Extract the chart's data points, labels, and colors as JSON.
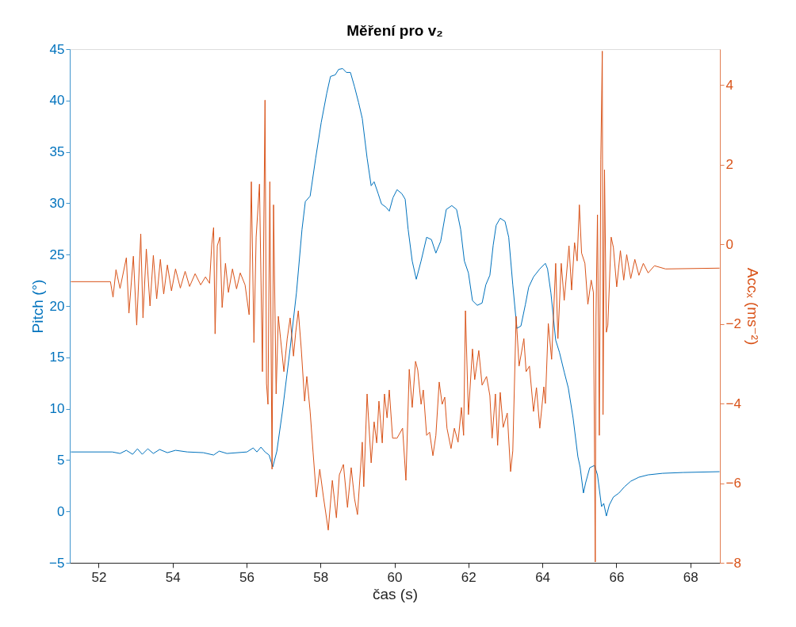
{
  "chart_data": {
    "type": "line",
    "title": "Měření pro v₂",
    "xlabel": "čas (s)",
    "ylabel": "Pitch (°)",
    "y2label": "Accₓ (ms⁻²)",
    "xlim": [
      51.22,
      68.8
    ],
    "xticks": [
      52,
      54,
      56,
      58,
      60,
      62,
      64,
      66,
      68
    ],
    "ylim": [
      -5,
      45
    ],
    "yticks": [
      -5,
      0,
      5,
      10,
      15,
      20,
      25,
      30,
      35,
      40,
      45
    ],
    "y2lim": [
      -8,
      4.9
    ],
    "y2ticks": [
      -8,
      -6,
      -4,
      -2,
      0,
      2,
      4
    ],
    "grid": false,
    "marker": "none",
    "line_style": "solid",
    "series": [
      {
        "color": "#0072bd",
        "x": [
          51.25,
          52.37,
          52.58,
          52.75,
          52.92,
          53.05,
          53.18,
          53.33,
          53.48,
          53.65,
          53.86,
          54.08,
          54.4,
          54.83,
          55.11,
          55.26,
          55.47,
          56.01,
          56.18,
          56.28,
          56.39,
          56.5,
          56.61,
          56.71,
          56.82,
          56.97,
          57.18,
          57.35,
          57.5,
          57.59,
          57.72,
          57.87,
          58.02,
          58.17,
          58.27,
          58.4,
          58.49,
          58.6,
          58.7,
          58.81,
          58.92,
          59.03,
          59.13,
          59.26,
          59.37,
          59.45,
          59.56,
          59.65,
          59.77,
          59.86,
          59.96,
          60.07,
          60.2,
          60.29,
          60.37,
          60.48,
          60.59,
          60.72,
          60.87,
          61.0,
          61.12,
          61.25,
          61.4,
          61.55,
          61.68,
          61.79,
          61.89,
          62.0,
          62.11,
          62.24,
          62.37,
          62.47,
          62.58,
          62.67,
          62.75,
          62.86,
          62.99,
          63.09,
          63.2,
          63.31,
          63.42,
          63.54,
          63.63,
          63.76,
          63.93,
          64.08,
          64.14,
          64.23,
          64.36,
          64.46,
          64.59,
          64.7,
          64.83,
          64.96,
          65.02,
          65.11,
          65.17,
          65.28,
          65.41,
          65.49,
          65.6,
          65.66,
          65.73,
          65.81,
          65.92,
          66.07,
          66.22,
          66.39,
          66.61,
          66.86,
          67.25,
          67.8,
          68.79
        ],
        "values": [
          5.79,
          5.79,
          5.64,
          5.95,
          5.56,
          6.1,
          5.56,
          6.1,
          5.64,
          6.03,
          5.72,
          5.95,
          5.79,
          5.72,
          5.49,
          5.87,
          5.64,
          5.79,
          6.18,
          5.79,
          6.26,
          5.79,
          5.49,
          4.33,
          5.87,
          9.73,
          15.9,
          21.29,
          27.46,
          30.16,
          30.7,
          34.4,
          37.87,
          40.72,
          42.34,
          42.5,
          43.03,
          43.11,
          42.73,
          42.73,
          41.34,
          39.8,
          38.25,
          34.4,
          31.7,
          32.09,
          30.93,
          29.93,
          29.62,
          29.23,
          30.54,
          31.32,
          30.93,
          30.39,
          27.46,
          24.38,
          22.6,
          24.38,
          26.69,
          26.46,
          25.15,
          26.3,
          29.39,
          29.77,
          29.39,
          27.46,
          24.38,
          23.22,
          20.52,
          20.06,
          20.29,
          22.06,
          22.99,
          25.92,
          27.85,
          28.54,
          28.23,
          26.69,
          22.06,
          17.82,
          18.05,
          20.13,
          21.83,
          22.83,
          23.61,
          24.15,
          23.61,
          21.29,
          16.67,
          15.51,
          13.58,
          12.04,
          9.11,
          5.33,
          4.33,
          1.79,
          2.79,
          4.25,
          4.48,
          3.56,
          0.47,
          0.78,
          -0.45,
          0.63,
          1.4,
          1.79,
          2.4,
          2.94,
          3.33,
          3.56,
          3.71,
          3.79,
          3.87
        ]
      },
      {
        "color": "#d95319",
        "axis": "y2",
        "x": [
          51.25,
          52.32,
          52.39,
          52.47,
          52.58,
          52.75,
          52.82,
          52.94,
          53.03,
          53.14,
          53.2,
          53.29,
          53.39,
          53.48,
          53.57,
          53.67,
          53.76,
          53.86,
          53.97,
          54.08,
          54.21,
          54.34,
          54.46,
          54.61,
          54.76,
          54.89,
          55.0,
          55.06,
          55.11,
          55.15,
          55.21,
          55.28,
          55.34,
          55.43,
          55.51,
          55.62,
          55.73,
          55.83,
          55.96,
          56.07,
          56.13,
          56.2,
          56.26,
          56.35,
          56.43,
          56.5,
          56.54,
          56.58,
          56.63,
          56.69,
          56.73,
          56.8,
          56.86,
          56.92,
          57.01,
          57.1,
          57.18,
          57.27,
          57.33,
          57.4,
          57.48,
          57.57,
          57.63,
          57.72,
          57.8,
          57.89,
          57.98,
          58.08,
          58.21,
          58.32,
          58.43,
          58.51,
          58.62,
          58.73,
          58.83,
          58.92,
          59.0,
          59.13,
          59.17,
          59.26,
          59.37,
          59.45,
          59.52,
          59.58,
          59.67,
          59.73,
          59.8,
          59.86,
          59.95,
          60.07,
          60.22,
          60.31,
          60.4,
          60.48,
          60.57,
          60.63,
          60.72,
          60.78,
          60.87,
          60.95,
          61.04,
          61.12,
          61.21,
          61.29,
          61.36,
          61.42,
          61.53,
          61.62,
          61.72,
          61.81,
          61.87,
          61.92,
          62.0,
          62.11,
          62.17,
          62.28,
          62.37,
          62.49,
          62.58,
          62.64,
          62.73,
          62.79,
          62.86,
          62.94,
          63.05,
          63.14,
          63.2,
          63.29,
          63.37,
          63.5,
          63.56,
          63.65,
          63.76,
          63.84,
          63.93,
          64.04,
          64.08,
          64.16,
          64.25,
          64.36,
          64.42,
          64.51,
          64.59,
          64.72,
          64.79,
          64.87,
          64.94,
          65.0,
          65.06,
          65.15,
          65.23,
          65.32,
          65.38,
          65.43,
          65.45,
          65.49,
          65.54,
          65.58,
          65.62,
          65.64,
          65.68,
          65.73,
          65.77,
          65.86,
          65.92,
          66.01,
          66.11,
          66.2,
          66.28,
          66.39,
          66.5,
          66.61,
          66.73,
          66.86,
          67.03,
          67.33,
          68.79
        ],
        "values": [
          -0.94,
          -0.94,
          -1.33,
          -0.64,
          -1.11,
          -0.34,
          -1.73,
          -0.3,
          -2.03,
          0.26,
          -1.85,
          -0.12,
          -1.55,
          -0.28,
          -1.37,
          -0.38,
          -1.25,
          -0.52,
          -1.17,
          -0.62,
          -1.1,
          -0.68,
          -1.06,
          -0.74,
          -1.02,
          -0.82,
          -0.98,
          0.0,
          0.42,
          -2.25,
          -0.04,
          0.18,
          -1.59,
          -0.48,
          -1.21,
          -0.62,
          -1.12,
          -0.72,
          -1.02,
          -1.77,
          1.57,
          -2.47,
          0.18,
          1.51,
          -3.2,
          3.62,
          -3.5,
          -4.02,
          1.57,
          -5.65,
          0.99,
          -3.76,
          -1.81,
          -2.37,
          -3.2,
          -2.37,
          -1.85,
          -2.81,
          -2.21,
          -1.67,
          -2.63,
          -3.94,
          -3.32,
          -4.2,
          -5.23,
          -6.35,
          -5.65,
          -6.35,
          -7.18,
          -5.93,
          -6.87,
          -5.79,
          -5.53,
          -6.61,
          -5.61,
          -6.39,
          -6.79,
          -4.97,
          -6.09,
          -3.76,
          -5.49,
          -4.46,
          -4.99,
          -3.94,
          -4.99,
          -3.76,
          -4.36,
          -3.66,
          -4.87,
          -4.87,
          -4.62,
          -5.93,
          -3.14,
          -4.1,
          -2.94,
          -3.16,
          -4.02,
          -3.66,
          -4.8,
          -4.72,
          -5.31,
          -4.8,
          -3.46,
          -4.02,
          -3.84,
          -4.62,
          -5.13,
          -4.62,
          -4.97,
          -4.1,
          -4.8,
          -1.67,
          -4.28,
          -2.63,
          -3.4,
          -2.67,
          -3.54,
          -3.32,
          -3.8,
          -4.87,
          -3.76,
          -5.05,
          -3.72,
          -4.6,
          -4.24,
          -5.71,
          -5.19,
          -1.81,
          -3.06,
          -2.37,
          -3.2,
          -3.06,
          -4.2,
          -3.6,
          -4.62,
          -3.58,
          -4.0,
          -1.99,
          -2.89,
          -0.48,
          -2.37,
          -0.48,
          -1.41,
          -0.04,
          -1.15,
          0.04,
          -0.42,
          0.99,
          -0.22,
          -0.48,
          -1.51,
          -0.9,
          -1.21,
          -7.98,
          -1.81,
          0.74,
          -4.8,
          2.13,
          4.85,
          -4.28,
          1.87,
          -2.21,
          -2.03,
          0.18,
          -0.08,
          -1.07,
          -0.16,
          -0.9,
          -0.26,
          -0.86,
          -0.38,
          -0.78,
          -0.48,
          -0.72,
          -0.54,
          -0.62,
          -0.6
        ]
      }
    ]
  }
}
